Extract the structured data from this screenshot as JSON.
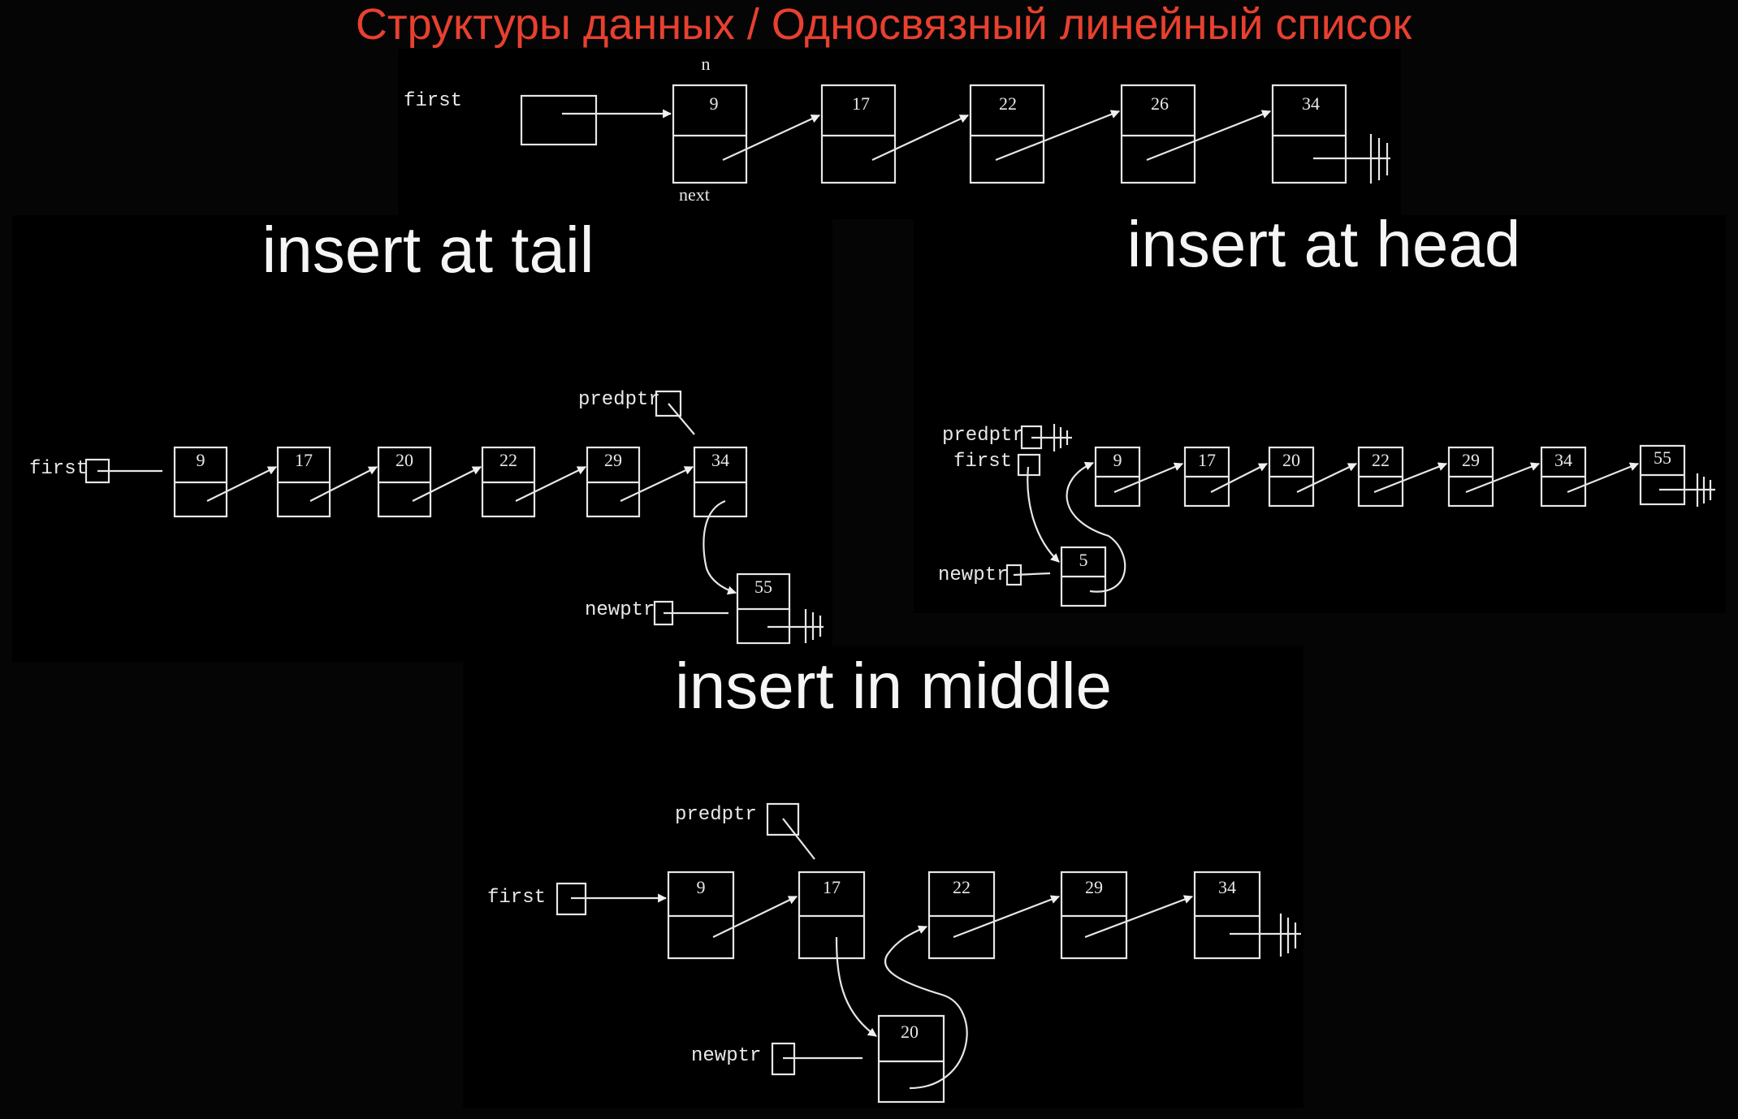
{
  "header": {
    "title": "Структуры данных / Односвязный линейный список"
  },
  "top": {
    "first_label": "first",
    "n_label": "n",
    "next_label": "next",
    "nodes": [
      "9",
      "17",
      "22",
      "26",
      "34"
    ]
  },
  "tail": {
    "title": "insert at tail",
    "first_label": "first",
    "predptr_label": "predptr",
    "newptr_label": "newptr",
    "nodes": [
      "9",
      "17",
      "20",
      "22",
      "29",
      "34"
    ],
    "new_node": "55"
  },
  "head": {
    "title": "insert at head",
    "predptr_label": "predptr",
    "first_label": "first",
    "newptr_label": "newptr",
    "nodes": [
      "9",
      "17",
      "20",
      "22",
      "29",
      "34",
      "55"
    ],
    "new_node": "5"
  },
  "middle": {
    "title": "insert in middle",
    "predptr_label": "predptr",
    "first_label": "first",
    "newptr_label": "newptr",
    "nodes": [
      "9",
      "17",
      "22",
      "29",
      "34"
    ],
    "new_node": "20"
  },
  "colors": {
    "header": "#e8402f",
    "background": "#000000",
    "ink": "#e6e6e6"
  }
}
